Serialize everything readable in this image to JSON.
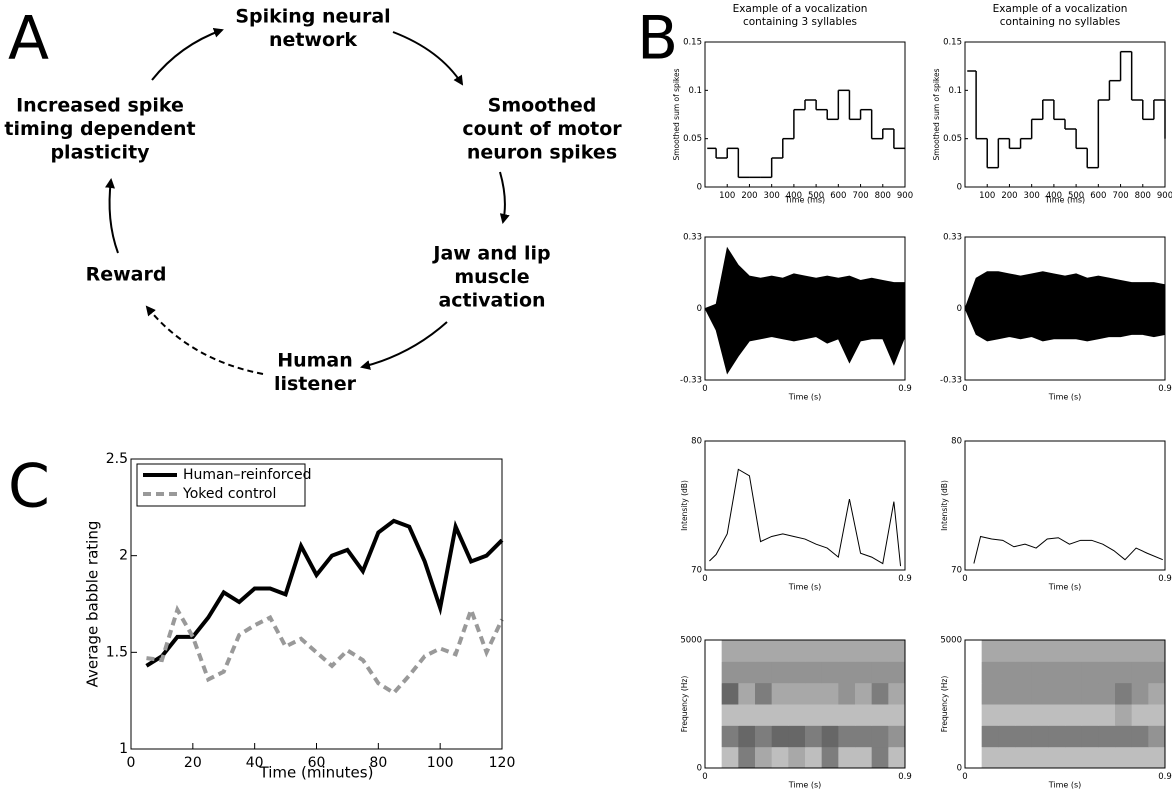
{
  "panel_labels": [
    "A",
    "B",
    "C"
  ],
  "diagram": {
    "nodes": [
      {
        "lines": [
          "Spiking neural",
          "network"
        ]
      },
      {
        "lines": [
          "Smoothed",
          "count of motor",
          "neuron spikes"
        ]
      },
      {
        "lines": [
          "Jaw and lip",
          "muscle",
          "activation"
        ]
      },
      {
        "lines": [
          "Human",
          "listener"
        ]
      },
      {
        "lines": [
          "Reward"
        ]
      },
      {
        "lines": [
          "Increased spike",
          "timing dependent",
          "plasticity"
        ]
      }
    ]
  },
  "chart_data": [
    {
      "type": "step",
      "title": [
        "Example of a vocalization",
        "containing 3 syllables"
      ],
      "x_label": "Time (ms)",
      "y_label": "Smoothed sum of spikes",
      "x": [
        10,
        50,
        100,
        150,
        200,
        250,
        300,
        350,
        400,
        450,
        500,
        550,
        600,
        650,
        700,
        750,
        800,
        850,
        900
      ],
      "values": [
        0.04,
        0.03,
        0.04,
        0.01,
        0.01,
        0.01,
        0.03,
        0.05,
        0.08,
        0.09,
        0.08,
        0.07,
        0.1,
        0.07,
        0.08,
        0.05,
        0.06,
        0.04,
        0.04
      ],
      "xlim": [
        0,
        900
      ],
      "ylim": [
        0,
        0.15
      ],
      "xticks": [
        100,
        200,
        300,
        400,
        500,
        600,
        700,
        800,
        900
      ],
      "yticks": [
        0,
        0.05,
        0.1,
        0.15
      ],
      "color": "#000000"
    },
    {
      "type": "step",
      "title": [
        "Example of a vocalization",
        "containing no syllables"
      ],
      "x_label": "Time (ms)",
      "y_label": "Smoothed sum of spikes",
      "x": [
        10,
        50,
        100,
        150,
        200,
        250,
        300,
        350,
        400,
        450,
        500,
        550,
        600,
        650,
        700,
        750,
        800,
        850,
        900
      ],
      "values": [
        0.12,
        0.05,
        0.02,
        0.05,
        0.04,
        0.05,
        0.07,
        0.09,
        0.07,
        0.06,
        0.04,
        0.02,
        0.09,
        0.11,
        0.14,
        0.09,
        0.07,
        0.09,
        0.05
      ],
      "xlim": [
        0,
        900
      ],
      "ylim": [
        0,
        0.15
      ],
      "xticks": [
        100,
        200,
        300,
        400,
        500,
        600,
        700,
        800,
        900
      ],
      "yticks": [
        0,
        0.05,
        0.1,
        0.15
      ],
      "color": "#000000"
    },
    {
      "type": "waveform",
      "x_label": "Time (s)",
      "x": [
        0,
        0.05,
        0.1,
        0.15,
        0.2,
        0.25,
        0.3,
        0.35,
        0.4,
        0.45,
        0.5,
        0.55,
        0.6,
        0.65,
        0.7,
        0.75,
        0.8,
        0.85,
        0.9
      ],
      "upper": [
        0,
        0.02,
        0.28,
        0.2,
        0.15,
        0.14,
        0.15,
        0.14,
        0.16,
        0.15,
        0.14,
        0.15,
        0.14,
        0.15,
        0.13,
        0.14,
        0.13,
        0.12,
        0.12
      ],
      "lower": [
        0,
        -0.1,
        -0.3,
        -0.22,
        -0.15,
        -0.14,
        -0.13,
        -0.14,
        -0.15,
        -0.14,
        -0.13,
        -0.16,
        -0.14,
        -0.25,
        -0.15,
        -0.14,
        -0.14,
        -0.26,
        -0.13
      ],
      "xlim": [
        0,
        0.9
      ],
      "ylim": [
        -0.33,
        0.33
      ],
      "xticks": [
        0,
        0.9
      ],
      "yticks": [
        -0.33,
        0,
        0.33
      ],
      "color": "#000000"
    },
    {
      "type": "waveform",
      "x_label": "Time (s)",
      "x": [
        0,
        0.05,
        0.1,
        0.15,
        0.2,
        0.25,
        0.3,
        0.35,
        0.4,
        0.45,
        0.5,
        0.55,
        0.6,
        0.65,
        0.7,
        0.75,
        0.8,
        0.85,
        0.9
      ],
      "upper": [
        0,
        0.14,
        0.17,
        0.17,
        0.16,
        0.15,
        0.16,
        0.17,
        0.16,
        0.15,
        0.16,
        0.14,
        0.15,
        0.14,
        0.13,
        0.12,
        0.12,
        0.12,
        0.11
      ],
      "lower": [
        0,
        -0.12,
        -0.15,
        -0.14,
        -0.13,
        -0.14,
        -0.13,
        -0.15,
        -0.14,
        -0.14,
        -0.14,
        -0.15,
        -0.14,
        -0.13,
        -0.13,
        -0.12,
        -0.12,
        -0.13,
        -0.12
      ],
      "xlim": [
        0,
        0.9
      ],
      "ylim": [
        -0.33,
        0.33
      ],
      "xticks": [
        0,
        0.9
      ],
      "yticks": [
        -0.33,
        0,
        0.33
      ],
      "color": "#000000"
    },
    {
      "type": "line",
      "x_label": "Time (s)",
      "y_label": "Intensity (dB)",
      "x": [
        0.02,
        0.05,
        0.1,
        0.15,
        0.2,
        0.25,
        0.3,
        0.35,
        0.4,
        0.45,
        0.5,
        0.55,
        0.6,
        0.65,
        0.7,
        0.75,
        0.8,
        0.85,
        0.88
      ],
      "values": [
        70.7,
        71.2,
        72.8,
        77.8,
        77.3,
        72.2,
        72.6,
        72.8,
        72.6,
        72.4,
        72.0,
        71.7,
        71.0,
        75.5,
        71.3,
        71.0,
        70.5,
        75.3,
        70.3
      ],
      "xlim": [
        0,
        0.9
      ],
      "ylim": [
        70,
        80
      ],
      "xticks": [
        0,
        0.9
      ],
      "yticks": [
        70,
        80
      ],
      "color": "#000000"
    },
    {
      "type": "line",
      "x_label": "Time (s)",
      "y_label": "Intensity (dB)",
      "x": [
        0.04,
        0.07,
        0.12,
        0.17,
        0.22,
        0.27,
        0.32,
        0.37,
        0.42,
        0.47,
        0.52,
        0.57,
        0.62,
        0.67,
        0.72,
        0.77,
        0.82,
        0.89
      ],
      "values": [
        70.5,
        72.6,
        72.4,
        72.3,
        71.8,
        72.0,
        71.7,
        72.4,
        72.5,
        72.0,
        72.3,
        72.3,
        72.0,
        71.5,
        70.8,
        71.7,
        71.3,
        70.8
      ],
      "xlim": [
        0,
        0.9
      ],
      "ylim": [
        70,
        80
      ],
      "xticks": [
        0,
        0.9
      ],
      "yticks": [
        70,
        80
      ],
      "color": "#000000"
    },
    {
      "type": "spectrogram",
      "x_label": "Time (s)",
      "y_label": "Frequency (Hz)",
      "z": [
        [
          0,
          0.3,
          0.6,
          0.4,
          0.3,
          0.4,
          0.3,
          0.6,
          0.3,
          0.3,
          0.6,
          0.3
        ],
        [
          0,
          0.6,
          0.7,
          0.6,
          0.7,
          0.7,
          0.6,
          0.7,
          0.6,
          0.6,
          0.6,
          0.5
        ],
        [
          0,
          0.3,
          0.3,
          0.3,
          0.3,
          0.3,
          0.3,
          0.3,
          0.3,
          0.3,
          0.3,
          0.3
        ],
        [
          0,
          0.7,
          0.4,
          0.6,
          0.4,
          0.4,
          0.4,
          0.4,
          0.5,
          0.4,
          0.6,
          0.4
        ],
        [
          0,
          0.5,
          0.5,
          0.5,
          0.5,
          0.5,
          0.5,
          0.5,
          0.5,
          0.5,
          0.5,
          0.5
        ],
        [
          0,
          0.4,
          0.4,
          0.4,
          0.4,
          0.4,
          0.4,
          0.4,
          0.4,
          0.4,
          0.4,
          0.4
        ]
      ],
      "xlim": [
        0,
        0.9
      ],
      "ylim": [
        0,
        5000
      ],
      "xticks": [
        0,
        0.9
      ],
      "yticks": [
        0,
        5000
      ]
    },
    {
      "type": "spectrogram",
      "x_label": "Time (s)",
      "y_label": "Frequency (Hz)",
      "z": [
        [
          0,
          0.3,
          0.3,
          0.3,
          0.3,
          0.3,
          0.3,
          0.3,
          0.3,
          0.3,
          0.3,
          0.3
        ],
        [
          0,
          0.6,
          0.6,
          0.6,
          0.6,
          0.6,
          0.6,
          0.6,
          0.6,
          0.6,
          0.6,
          0.5
        ],
        [
          0,
          0.3,
          0.3,
          0.3,
          0.3,
          0.3,
          0.3,
          0.3,
          0.3,
          0.4,
          0.3,
          0.3
        ],
        [
          0,
          0.5,
          0.5,
          0.5,
          0.5,
          0.5,
          0.5,
          0.5,
          0.5,
          0.6,
          0.5,
          0.4
        ],
        [
          0,
          0.5,
          0.5,
          0.5,
          0.5,
          0.5,
          0.5,
          0.5,
          0.5,
          0.5,
          0.5,
          0.5
        ],
        [
          0,
          0.4,
          0.4,
          0.4,
          0.4,
          0.4,
          0.4,
          0.4,
          0.4,
          0.4,
          0.4,
          0.4
        ]
      ],
      "xlim": [
        0,
        0.9
      ],
      "ylim": [
        0,
        5000
      ],
      "xticks": [
        0,
        0.9
      ],
      "yticks": [
        0,
        5000
      ]
    },
    {
      "type": "multiline",
      "x_label": "Time (minutes)",
      "y_label": "Average babble rating",
      "legend": "upper left",
      "x": [
        5,
        10,
        15,
        20,
        25,
        30,
        35,
        40,
        45,
        50,
        55,
        60,
        65,
        70,
        75,
        80,
        85,
        90,
        95,
        100,
        105,
        110,
        115,
        120
      ],
      "series": [
        {
          "name": "Human–reinforced",
          "color": "#000000",
          "dashed": false,
          "values": [
            1.43,
            1.48,
            1.58,
            1.58,
            1.68,
            1.81,
            1.76,
            1.83,
            1.83,
            1.8,
            2.05,
            1.9,
            2.0,
            2.03,
            1.92,
            2.12,
            2.18,
            2.15,
            1.97,
            1.73,
            2.15,
            1.97,
            2.0,
            2.08
          ]
        },
        {
          "name": "Yoked control",
          "color": "#999999",
          "dashed": true,
          "values": [
            1.47,
            1.46,
            1.72,
            1.58,
            1.36,
            1.4,
            1.59,
            1.64,
            1.68,
            1.53,
            1.57,
            1.5,
            1.43,
            1.51,
            1.46,
            1.34,
            1.29,
            1.38,
            1.48,
            1.52,
            1.49,
            1.72,
            1.5,
            1.67
          ]
        }
      ],
      "xlim": [
        0,
        120
      ],
      "ylim": [
        1,
        2.5
      ],
      "xticks": [
        0,
        20,
        40,
        60,
        80,
        100,
        120
      ],
      "yticks": [
        1,
        1.5,
        2,
        2.5
      ]
    }
  ]
}
